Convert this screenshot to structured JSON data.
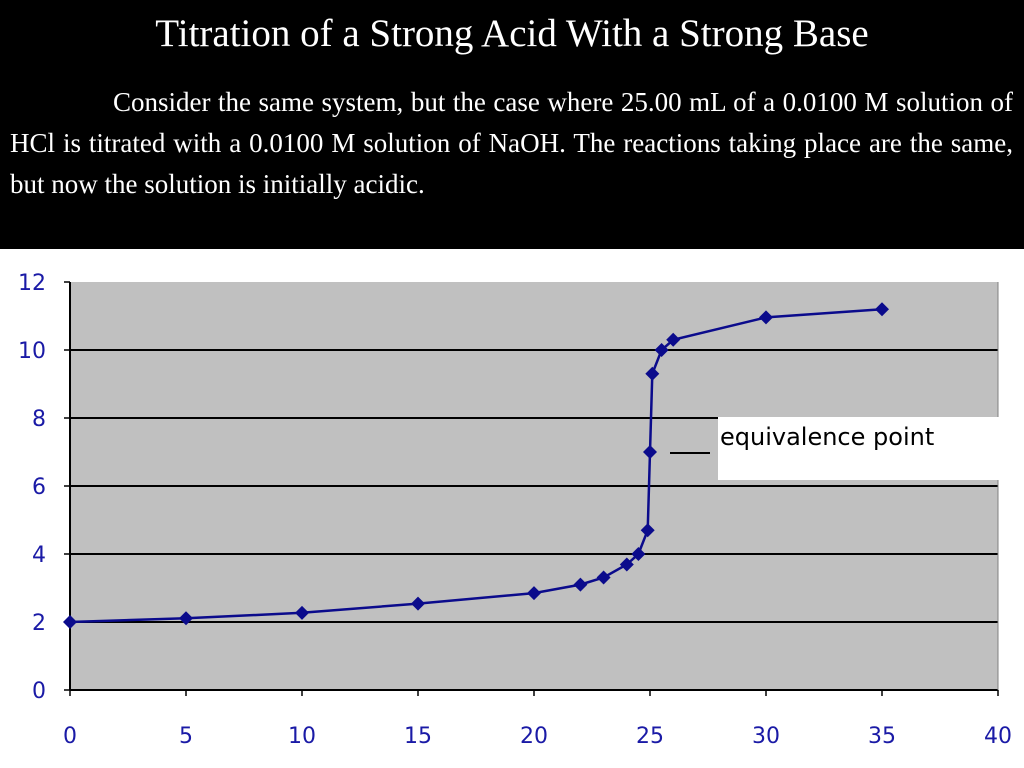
{
  "slide": {
    "title": "Titration of a Strong Acid With a Strong Base",
    "body": "Consider the same system, but the case where 25.00 mL of a 0.0100 M solution of HCl is titrated with a 0.0100 M solution of NaOH. The reactions taking place are the same, but now the solution is initially acidic."
  },
  "chart_data": {
    "type": "line",
    "title": "",
    "xlabel": "",
    "ylabel": "",
    "xlim": [
      0,
      40
    ],
    "ylim": [
      0,
      12
    ],
    "xticks": [
      "0",
      "5",
      "10",
      "15",
      "20",
      "25",
      "30",
      "35",
      "40"
    ],
    "yticks": [
      "0",
      "2",
      "4",
      "6",
      "8",
      "10",
      "12"
    ],
    "grid": "horizontal",
    "annotation": "equivalence point",
    "colors": {
      "series": "#0b0b8c",
      "plot_bg": "#c0c0c0",
      "grid": "#000000",
      "tick_text": "#1a1aa6"
    },
    "series": [
      {
        "x": [
          0,
          5,
          10,
          15,
          20,
          22,
          23,
          24,
          24.5,
          24.9,
          25,
          25.1,
          25.5,
          26,
          30,
          35
        ],
        "y": [
          2.0,
          2.11,
          2.27,
          2.54,
          2.85,
          3.1,
          3.31,
          3.69,
          4.0,
          4.7,
          7.0,
          9.3,
          10.0,
          10.3,
          10.96,
          11.2
        ]
      }
    ]
  }
}
